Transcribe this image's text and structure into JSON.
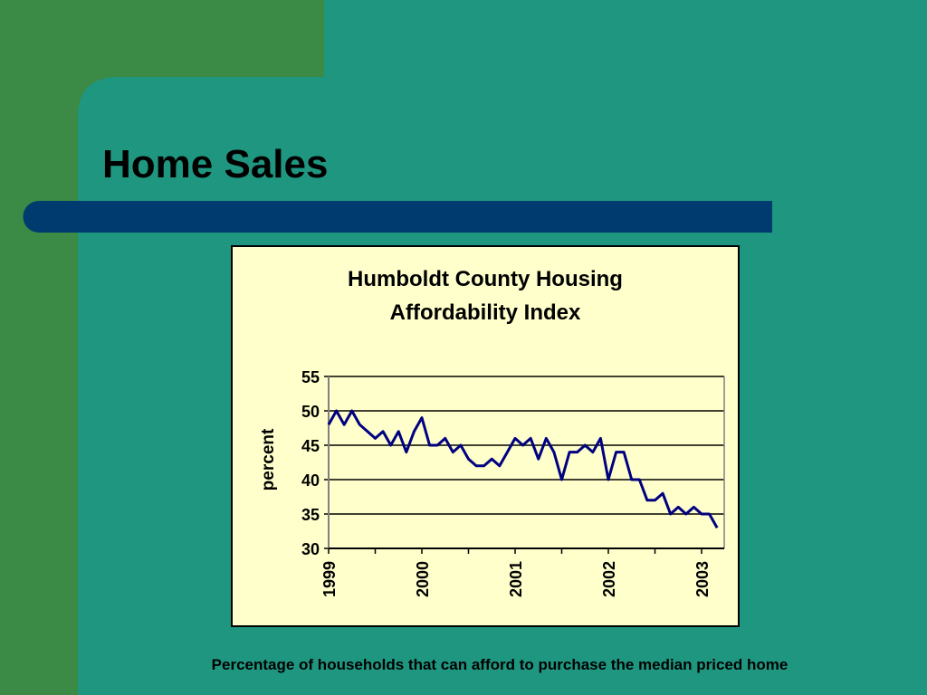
{
  "slide_title": "Home Sales",
  "caption": "Percentage of households that can afford to purchase the median priced home",
  "chart_data": {
    "type": "line",
    "title": "Humboldt County Housing Affordability Index",
    "y_label": "percent",
    "categories": [
      "1999",
      null,
      null,
      null,
      null,
      null,
      null,
      null,
      null,
      null,
      null,
      null,
      "2000",
      null,
      null,
      null,
      null,
      null,
      null,
      null,
      null,
      null,
      null,
      null,
      "2001",
      null,
      null,
      null,
      null,
      null,
      null,
      null,
      null,
      null,
      null,
      null,
      "2002",
      null,
      null,
      null,
      null,
      null,
      null,
      null,
      null,
      null,
      null,
      null,
      "2003",
      null,
      null
    ],
    "series": [
      {
        "name": "Affordability Index",
        "color": "#000080",
        "values": [
          48,
          50,
          48,
          50,
          48,
          47,
          46,
          47,
          45,
          47,
          44,
          47,
          49,
          45,
          45,
          46,
          44,
          45,
          43,
          42,
          42,
          43,
          42,
          44,
          46,
          45,
          46,
          43,
          46,
          44,
          40,
          44,
          44,
          45,
          44,
          46,
          40,
          44,
          44,
          40,
          40,
          37,
          37,
          38,
          35,
          36,
          35,
          36,
          35,
          35,
          33
        ]
      }
    ],
    "ylim": [
      30,
      55
    ],
    "yticks": [
      30,
      35,
      40,
      45,
      50,
      55
    ],
    "grid": true
  }
}
